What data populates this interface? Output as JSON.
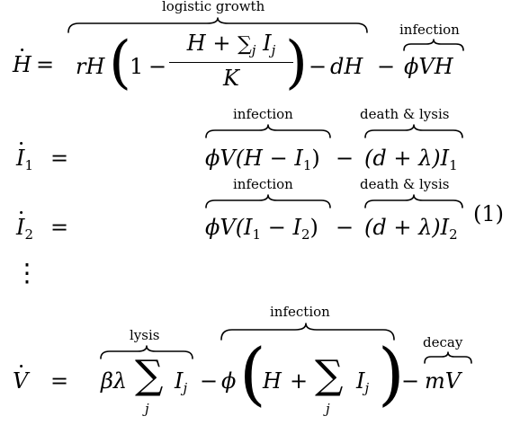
{
  "equation_number": "(1)",
  "rows": {
    "h": {
      "lhs_base": "H",
      "eq_sign": "=",
      "term_rH": "rH",
      "one": "1",
      "minus1": "−",
      "frac_num_H": "H",
      "frac_num_plus": "+",
      "frac_num_sum": "∑",
      "frac_num_sum_sub": "j",
      "frac_num_I": "I",
      "frac_num_I_sub": "j",
      "frac_den": "K",
      "minus2": "−",
      "term_dH": "dH",
      "minus3": "−",
      "term_phiVH": "ϕVH",
      "label_logistic": "logistic growth",
      "label_infection": "infection"
    },
    "i1": {
      "lhs_base": "I",
      "lhs_sub": "1",
      "eq_sign": "=",
      "term_infection": "ϕV(H − I",
      "term_infection_sub": "1",
      "term_infection_close": ")",
      "minus": "−",
      "term_death": "(d + λ)I",
      "term_death_sub": "1",
      "label_infection": "infection",
      "label_death": "death & lysis"
    },
    "i2": {
      "lhs_base": "I",
      "lhs_sub": "2",
      "eq_sign": "=",
      "term_infection": "ϕV(I",
      "term_infection_sub1": "1",
      "term_infection_mid": " − I",
      "term_infection_sub2": "2",
      "term_infection_close": ")",
      "minus": "−",
      "term_death": "(d + λ)I",
      "term_death_sub": "2",
      "label_infection": "infection",
      "label_death": "death & lysis"
    },
    "vdots": "⋮",
    "v": {
      "lhs_base": "V",
      "eq_sign": "=",
      "term_betalambda": "βλ",
      "sum1": "∑",
      "sum1_sub": "j",
      "I1": "I",
      "I1_sub": "j",
      "minus1": "−",
      "phi": "ϕ",
      "inner_H": "H",
      "inner_plus": "+",
      "sum2": "∑",
      "sum2_sub": "j",
      "I2": "I",
      "I2_sub": "j",
      "minus2": "−",
      "term_mV": "mV",
      "label_lysis": "lysis",
      "label_infection": "infection",
      "label_decay": "decay"
    }
  }
}
